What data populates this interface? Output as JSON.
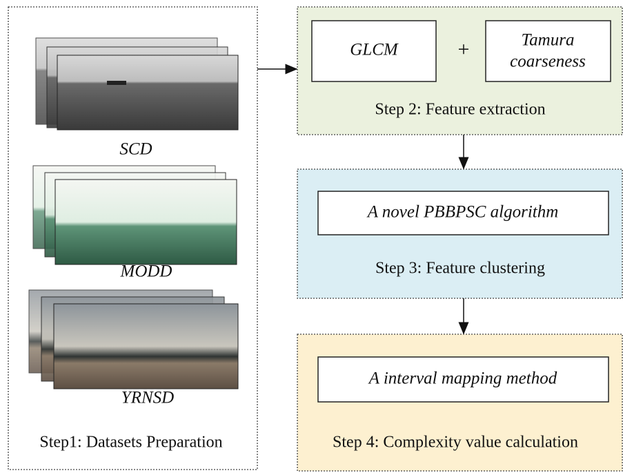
{
  "datasets": [
    {
      "name": "SCD"
    },
    {
      "name": "MODD"
    },
    {
      "name": "YRNSD"
    }
  ],
  "step1": {
    "title": "Step1: Datasets Preparation"
  },
  "step2": {
    "title": "Step 2: Feature extraction",
    "boxes": [
      {
        "lines": [
          "GLCM"
        ]
      },
      {
        "lines": [
          "Tamura",
          "coarseness"
        ]
      }
    ],
    "operator": "+"
  },
  "step3": {
    "title": "Step 3: Feature clustering",
    "box": "A novel PBBPSC algorithm"
  },
  "step4": {
    "title": "Step 4: Complexity value calculation",
    "box": "A interval mapping method"
  }
}
